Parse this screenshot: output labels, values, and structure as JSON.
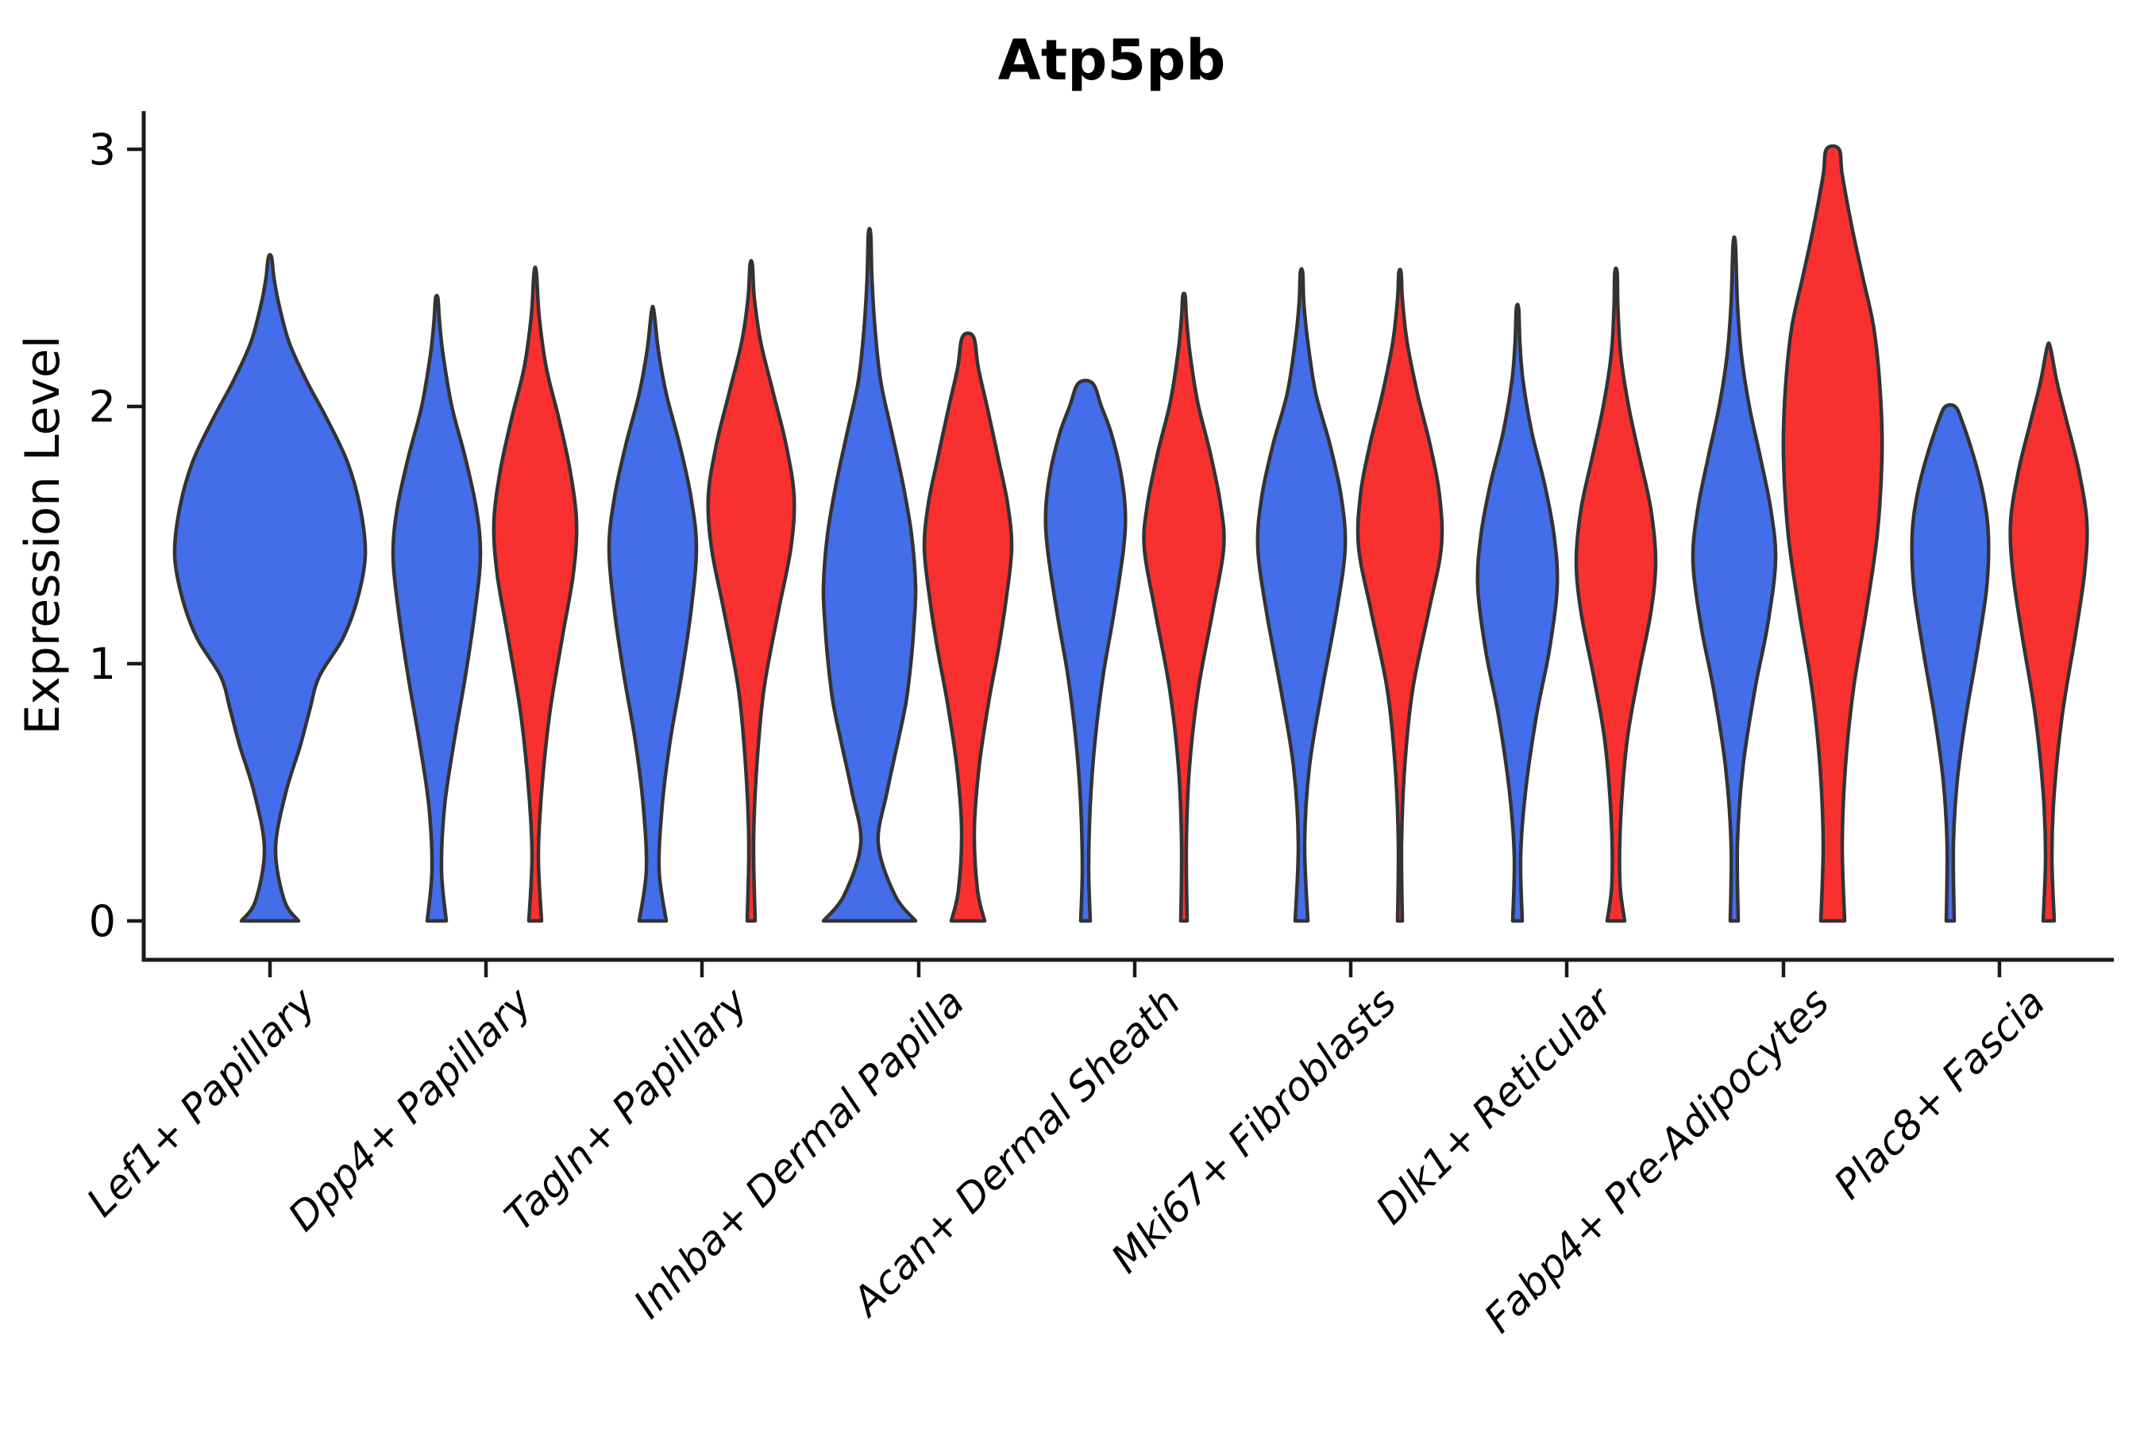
{
  "title": "Atp5pb",
  "chart_data": {
    "type": "violin",
    "title": "Atp5pb",
    "xlabel": "",
    "ylabel": "Expression Level",
    "ylim": [
      0,
      3.17
    ],
    "yticks": [
      0,
      1,
      2,
      3
    ],
    "grid": false,
    "legend_position": "none",
    "categories": [
      "Lef1+ Papillary",
      "Dpp4+ Papillary",
      "Tagln+ Papillary",
      "Inhba+ Dermal Papilla",
      "Acan+ Dermal Sheath",
      "Mki67+ Fibroblasts",
      "Dlk1+ Reticular",
      "Fabp4+ Pre-Adipocytes",
      "Plac8+ Fascia"
    ],
    "category_centers": [
      340,
      612,
      884,
      1157,
      1429,
      1701,
      1973,
      2246,
      2518
    ],
    "groups": [
      "group-blue",
      "group-red"
    ],
    "colors": {
      "blue": "#446DEA",
      "red": "#F93030",
      "outline": "#333333",
      "axis": "#1a1a1a",
      "text": "#000000"
    },
    "violins": [
      {
        "category": "Lef1+ Papillary",
        "group": "blue",
        "center": 340,
        "max_expression": 2.58,
        "profile": [
          [
            0,
            36
          ],
          [
            0.08,
            18
          ],
          [
            0.28,
            7
          ],
          [
            0.5,
            20
          ],
          [
            0.68,
            38
          ],
          [
            0.82,
            50
          ],
          [
            0.95,
            62
          ],
          [
            1.1,
            92
          ],
          [
            1.25,
            110
          ],
          [
            1.42,
            120
          ],
          [
            1.6,
            114
          ],
          [
            1.78,
            98
          ],
          [
            1.95,
            72
          ],
          [
            2.1,
            46
          ],
          [
            2.25,
            24
          ],
          [
            2.4,
            11
          ],
          [
            2.5,
            5
          ],
          [
            2.58,
            2
          ]
        ]
      },
      {
        "category": "Dpp4+ Papillary",
        "group": "blue",
        "center": 550,
        "max_expression": 2.42,
        "profile": [
          [
            0,
            12
          ],
          [
            0.2,
            6
          ],
          [
            0.45,
            10
          ],
          [
            0.7,
            22
          ],
          [
            0.95,
            36
          ],
          [
            1.2,
            48
          ],
          [
            1.42,
            55
          ],
          [
            1.6,
            50
          ],
          [
            1.8,
            36
          ],
          [
            2.0,
            19
          ],
          [
            2.2,
            8
          ],
          [
            2.33,
            3.5
          ],
          [
            2.42,
            1.5
          ]
        ]
      },
      {
        "category": "Dpp4+ Papillary",
        "group": "red",
        "center": 674,
        "max_expression": 2.52,
        "profile": [
          [
            0,
            8
          ],
          [
            0.25,
            4
          ],
          [
            0.5,
            8
          ],
          [
            0.8,
            18
          ],
          [
            1.1,
            34
          ],
          [
            1.35,
            48
          ],
          [
            1.55,
            52
          ],
          [
            1.75,
            44
          ],
          [
            1.95,
            30
          ],
          [
            2.15,
            14
          ],
          [
            2.35,
            5
          ],
          [
            2.52,
            1.5
          ]
        ]
      },
      {
        "category": "Tagln+ Papillary",
        "group": "blue",
        "center": 822,
        "max_expression": 2.37,
        "profile": [
          [
            0,
            17
          ],
          [
            0.2,
            8
          ],
          [
            0.45,
            12
          ],
          [
            0.7,
            22
          ],
          [
            0.95,
            36
          ],
          [
            1.2,
            48
          ],
          [
            1.45,
            55
          ],
          [
            1.65,
            48
          ],
          [
            1.85,
            34
          ],
          [
            2.05,
            17
          ],
          [
            2.22,
            7
          ],
          [
            2.37,
            1.5
          ]
        ]
      },
      {
        "category": "Tagln+ Papillary",
        "group": "red",
        "center": 946,
        "max_expression": 2.55,
        "profile": [
          [
            0,
            5
          ],
          [
            0.3,
            3
          ],
          [
            0.6,
            7
          ],
          [
            0.9,
            16
          ],
          [
            1.2,
            34
          ],
          [
            1.45,
            50
          ],
          [
            1.65,
            54
          ],
          [
            1.85,
            44
          ],
          [
            2.05,
            28
          ],
          [
            2.25,
            12
          ],
          [
            2.42,
            4
          ],
          [
            2.55,
            1.5
          ]
        ]
      },
      {
        "category": "Inhba+ Dermal Papilla",
        "group": "blue",
        "center": 1095,
        "max_expression": 2.67,
        "profile": [
          [
            0,
            58
          ],
          [
            0.1,
            32
          ],
          [
            0.3,
            11
          ],
          [
            0.5,
            22
          ],
          [
            0.7,
            36
          ],
          [
            0.85,
            46
          ],
          [
            1.0,
            52
          ],
          [
            1.15,
            56
          ],
          [
            1.3,
            58
          ],
          [
            1.5,
            53
          ],
          [
            1.7,
            42
          ],
          [
            1.9,
            28
          ],
          [
            2.1,
            14
          ],
          [
            2.3,
            7
          ],
          [
            2.5,
            3
          ],
          [
            2.67,
            1.5
          ]
        ]
      },
      {
        "category": "Inhba+ Dermal Papilla",
        "group": "red",
        "center": 1219,
        "max_expression": 2.27,
        "profile": [
          [
            0,
            21
          ],
          [
            0.12,
            12
          ],
          [
            0.35,
            8
          ],
          [
            0.6,
            14
          ],
          [
            0.85,
            26
          ],
          [
            1.05,
            38
          ],
          [
            1.25,
            48
          ],
          [
            1.45,
            55
          ],
          [
            1.62,
            50
          ],
          [
            1.8,
            38
          ],
          [
            2.0,
            24
          ],
          [
            2.15,
            13
          ],
          [
            2.27,
            7
          ]
        ]
      },
      {
        "category": "Acan+ Dermal Sheath",
        "group": "blue",
        "center": 1367,
        "max_expression": 2.09,
        "profile": [
          [
            0,
            6
          ],
          [
            0.2,
            4
          ],
          [
            0.45,
            6
          ],
          [
            0.7,
            12
          ],
          [
            0.95,
            22
          ],
          [
            1.2,
            36
          ],
          [
            1.45,
            48
          ],
          [
            1.6,
            50
          ],
          [
            1.75,
            44
          ],
          [
            1.9,
            32
          ],
          [
            2.0,
            20
          ],
          [
            2.09,
            9
          ]
        ]
      },
      {
        "category": "Acan+ Dermal Sheath",
        "group": "red",
        "center": 1491,
        "max_expression": 2.43,
        "profile": [
          [
            0,
            4
          ],
          [
            0.3,
            3
          ],
          [
            0.6,
            7
          ],
          [
            0.9,
            18
          ],
          [
            1.2,
            36
          ],
          [
            1.45,
            50
          ],
          [
            1.62,
            46
          ],
          [
            1.82,
            33
          ],
          [
            2.02,
            17
          ],
          [
            2.22,
            7
          ],
          [
            2.35,
            3
          ],
          [
            2.43,
            1.5
          ]
        ]
      },
      {
        "category": "Mki67+ Fibroblasts",
        "group": "blue",
        "center": 1639,
        "max_expression": 2.52,
        "profile": [
          [
            0,
            8
          ],
          [
            0.3,
            4
          ],
          [
            0.6,
            10
          ],
          [
            0.9,
            26
          ],
          [
            1.2,
            44
          ],
          [
            1.45,
            55
          ],
          [
            1.65,
            50
          ],
          [
            1.85,
            36
          ],
          [
            2.05,
            18
          ],
          [
            2.25,
            8
          ],
          [
            2.4,
            3
          ],
          [
            2.52,
            1.5
          ]
        ]
      },
      {
        "category": "Mki67+ Fibroblasts",
        "group": "red",
        "center": 1763,
        "max_expression": 2.52,
        "profile": [
          [
            0,
            3
          ],
          [
            0.3,
            2
          ],
          [
            0.6,
            6
          ],
          [
            0.9,
            16
          ],
          [
            1.2,
            36
          ],
          [
            1.45,
            52
          ],
          [
            1.65,
            50
          ],
          [
            1.85,
            38
          ],
          [
            2.05,
            22
          ],
          [
            2.25,
            9
          ],
          [
            2.42,
            3
          ],
          [
            2.52,
            1.5
          ]
        ]
      },
      {
        "category": "Dlk1+ Reticular",
        "group": "blue",
        "center": 1911,
        "max_expression": 2.38,
        "profile": [
          [
            0,
            6
          ],
          [
            0.25,
            4
          ],
          [
            0.5,
            10
          ],
          [
            0.8,
            24
          ],
          [
            1.05,
            40
          ],
          [
            1.3,
            50
          ],
          [
            1.5,
            46
          ],
          [
            1.7,
            34
          ],
          [
            1.9,
            18
          ],
          [
            2.1,
            7
          ],
          [
            2.25,
            3
          ],
          [
            2.38,
            1.5
          ]
        ]
      },
      {
        "category": "Dlk1+ Reticular",
        "group": "red",
        "center": 2035,
        "max_expression": 2.52,
        "profile": [
          [
            0,
            11
          ],
          [
            0.15,
            5
          ],
          [
            0.4,
            6
          ],
          [
            0.7,
            14
          ],
          [
            0.95,
            28
          ],
          [
            1.2,
            44
          ],
          [
            1.4,
            50
          ],
          [
            1.6,
            44
          ],
          [
            1.8,
            30
          ],
          [
            2.0,
            16
          ],
          [
            2.2,
            6
          ],
          [
            2.38,
            2.5
          ],
          [
            2.52,
            1.5
          ]
        ]
      },
      {
        "category": "Fabp4+ Pre-Adipocytes",
        "group": "blue",
        "center": 2184,
        "max_expression": 2.63,
        "profile": [
          [
            0,
            5
          ],
          [
            0.3,
            4
          ],
          [
            0.6,
            11
          ],
          [
            0.9,
            26
          ],
          [
            1.15,
            42
          ],
          [
            1.4,
            52
          ],
          [
            1.6,
            46
          ],
          [
            1.8,
            33
          ],
          [
            2.0,
            19
          ],
          [
            2.2,
            9
          ],
          [
            2.4,
            4
          ],
          [
            2.63,
            1.5
          ]
        ]
      },
      {
        "category": "Fabp4+ Pre-Adipocytes",
        "group": "red",
        "center": 2308,
        "max_expression": 3.0,
        "profile": [
          [
            0,
            15
          ],
          [
            0.3,
            12
          ],
          [
            0.6,
            16
          ],
          [
            0.9,
            26
          ],
          [
            1.2,
            42
          ],
          [
            1.5,
            56
          ],
          [
            1.8,
            62
          ],
          [
            2.05,
            60
          ],
          [
            2.3,
            52
          ],
          [
            2.5,
            38
          ],
          [
            2.7,
            24
          ],
          [
            2.9,
            12
          ],
          [
            3.0,
            8
          ]
        ]
      },
      {
        "category": "Plac8+ Fascia",
        "group": "blue",
        "center": 2456,
        "max_expression": 2.0,
        "profile": [
          [
            0,
            5
          ],
          [
            0.3,
            4
          ],
          [
            0.55,
            9
          ],
          [
            0.8,
            20
          ],
          [
            1.05,
            34
          ],
          [
            1.3,
            46
          ],
          [
            1.5,
            48
          ],
          [
            1.65,
            42
          ],
          [
            1.8,
            30
          ],
          [
            1.95,
            14
          ],
          [
            2.0,
            6
          ]
        ]
      },
      {
        "category": "Plac8+ Fascia",
        "group": "red",
        "center": 2580,
        "max_expression": 2.23,
        "profile": [
          [
            0,
            7
          ],
          [
            0.25,
            4
          ],
          [
            0.5,
            7
          ],
          [
            0.8,
            17
          ],
          [
            1.1,
            33
          ],
          [
            1.35,
            45
          ],
          [
            1.55,
            48
          ],
          [
            1.75,
            38
          ],
          [
            1.95,
            22
          ],
          [
            2.1,
            10
          ],
          [
            2.23,
            2
          ]
        ]
      }
    ]
  }
}
